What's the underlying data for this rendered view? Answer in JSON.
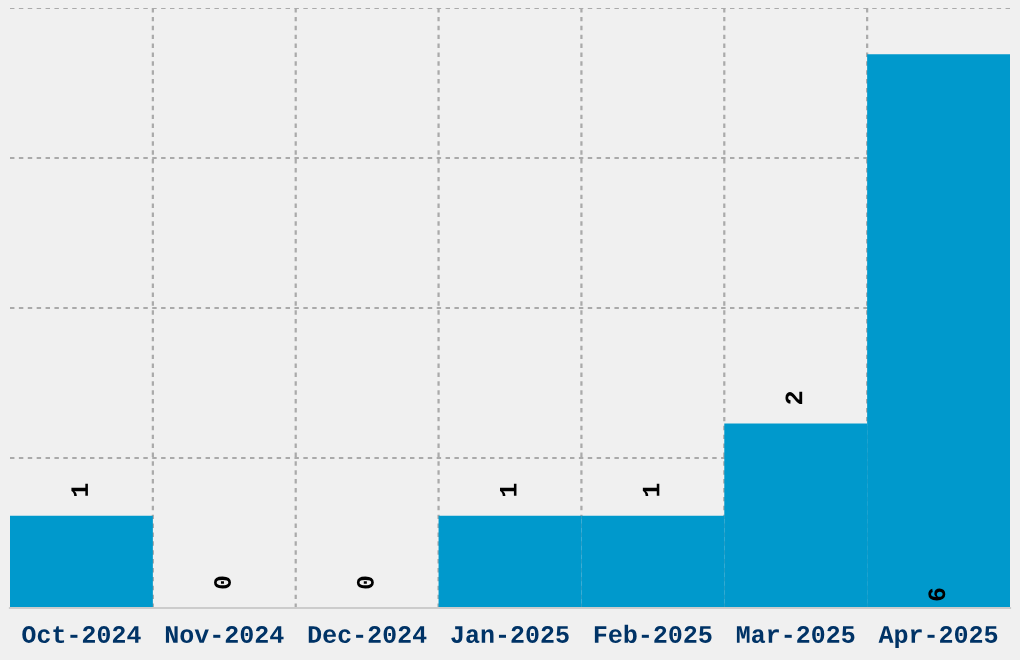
{
  "chart_data": {
    "type": "bar",
    "categories": [
      "Oct-2024",
      "Nov-2024",
      "Dec-2024",
      "Jan-2025",
      "Feb-2025",
      "Mar-2025",
      "Apr-2025"
    ],
    "values": [
      1,
      0,
      0,
      1,
      1,
      2,
      6
    ],
    "color": "#0099cc",
    "ylim": [
      0,
      6.5
    ],
    "yticks": [
      {
        "value": 0,
        "label": null
      },
      {
        "value": 1.625,
        "label": null
      },
      {
        "value": 3.25,
        "label": null
      },
      {
        "value": 4.875,
        "label": null
      },
      {
        "value": 6.5,
        "label": null
      }
    ],
    "grid": true,
    "data_labels": true,
    "tick_labels": "x"
  }
}
